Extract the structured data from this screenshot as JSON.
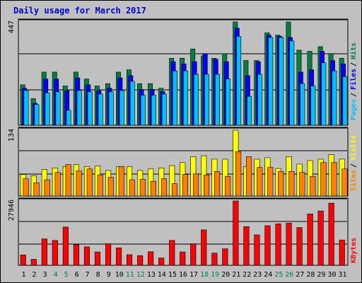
{
  "title": "Daily usage for March 2017",
  "colors": {
    "hits": "#008040",
    "files": "#0000ff",
    "pages": "#00c0ff",
    "visits": "#ffff00",
    "sites": "#ff8000",
    "kbytes": "#ff0000",
    "weekday_label": "#000000",
    "weekend_label": "#00805c"
  },
  "chart_data": [
    {
      "type": "bar",
      "panel": "hits-files-pages",
      "max_label": "447",
      "ylim": [
        0,
        447
      ],
      "legend": [
        "Pages",
        "Files",
        "Hits"
      ],
      "categories": [
        "1",
        "2",
        "3",
        "4",
        "5",
        "6",
        "7",
        "8",
        "9",
        "10",
        "11",
        "12",
        "13",
        "14",
        "15",
        "16",
        "17",
        "18",
        "19",
        "20",
        "21",
        "22",
        "23",
        "24",
        "25",
        "26",
        "27",
        "28",
        "29",
        "30",
        "31"
      ],
      "weekend_days": [
        "4",
        "5",
        "11",
        "12",
        "18",
        "19",
        "25",
        "26"
      ],
      "series": [
        {
          "name": "Hits",
          "values": [
            175,
            115,
            230,
            230,
            170,
            230,
            200,
            170,
            180,
            230,
            240,
            180,
            180,
            160,
            290,
            290,
            330,
            300,
            290,
            310,
            447,
            280,
            280,
            400,
            390,
            447,
            325,
            320,
            340,
            310,
            290
          ]
        },
        {
          "name": "Files",
          "values": [
            160,
            95,
            200,
            200,
            150,
            205,
            175,
            150,
            160,
            205,
            215,
            155,
            155,
            145,
            275,
            265,
            275,
            310,
            285,
            275,
            420,
            215,
            275,
            390,
            385,
            380,
            230,
            240,
            320,
            280,
            265
          ]
        },
        {
          "name": "Pages",
          "values": [
            150,
            90,
            140,
            145,
            65,
            150,
            145,
            135,
            145,
            150,
            190,
            130,
            130,
            135,
            235,
            235,
            220,
            220,
            220,
            200,
            385,
            125,
            220,
            380,
            380,
            365,
            180,
            170,
            270,
            235,
            210
          ]
        }
      ]
    },
    {
      "type": "bar",
      "panel": "visits-sites",
      "max_label": "134",
      "ylim": [
        0,
        134
      ],
      "legend": [
        "Sites",
        "Visits"
      ],
      "categories": [
        "1",
        "2",
        "3",
        "4",
        "5",
        "6",
        "7",
        "8",
        "9",
        "10",
        "11",
        "12",
        "13",
        "14",
        "15",
        "16",
        "17",
        "18",
        "19",
        "20",
        "21",
        "22",
        "23",
        "24",
        "25",
        "26",
        "27",
        "28",
        "29",
        "30",
        "31"
      ],
      "series": [
        {
          "name": "Visits",
          "values": [
            44,
            41,
            54,
            57,
            60,
            64,
            60,
            61,
            52,
            60,
            60,
            52,
            55,
            57,
            62,
            68,
            80,
            82,
            75,
            75,
            134,
            60,
            75,
            78,
            56,
            80,
            65,
            72,
            75,
            84,
            75
          ]
        },
        {
          "name": "Sites",
          "values": [
            35,
            27,
            33,
            48,
            64,
            51,
            55,
            43,
            38,
            60,
            33,
            34,
            30,
            35,
            25,
            44,
            45,
            43,
            50,
            40,
            90,
            80,
            58,
            58,
            50,
            50,
            48,
            40,
            68,
            68,
            55
          ]
        }
      ]
    },
    {
      "type": "bar",
      "panel": "kbytes",
      "max_label": "27946",
      "ylim": [
        0,
        27946
      ],
      "legend": [
        "KBytes"
      ],
      "categories": [
        "1",
        "2",
        "3",
        "4",
        "5",
        "6",
        "7",
        "8",
        "9",
        "10",
        "11",
        "12",
        "13",
        "14",
        "15",
        "16",
        "17",
        "18",
        "19",
        "20",
        "21",
        "22",
        "23",
        "24",
        "25",
        "26",
        "27",
        "28",
        "29",
        "30",
        "31"
      ],
      "series": [
        {
          "name": "KBytes",
          "values": [
            4500,
            2600,
            11500,
            10800,
            16600,
            9000,
            8000,
            5800,
            9400,
            7600,
            4600,
            4200,
            5900,
            3200,
            10800,
            5800,
            9400,
            15400,
            5300,
            7200,
            27946,
            16800,
            13200,
            17200,
            18000,
            18300,
            16400,
            22300,
            23600,
            27000,
            11000
          ]
        }
      ]
    }
  ]
}
